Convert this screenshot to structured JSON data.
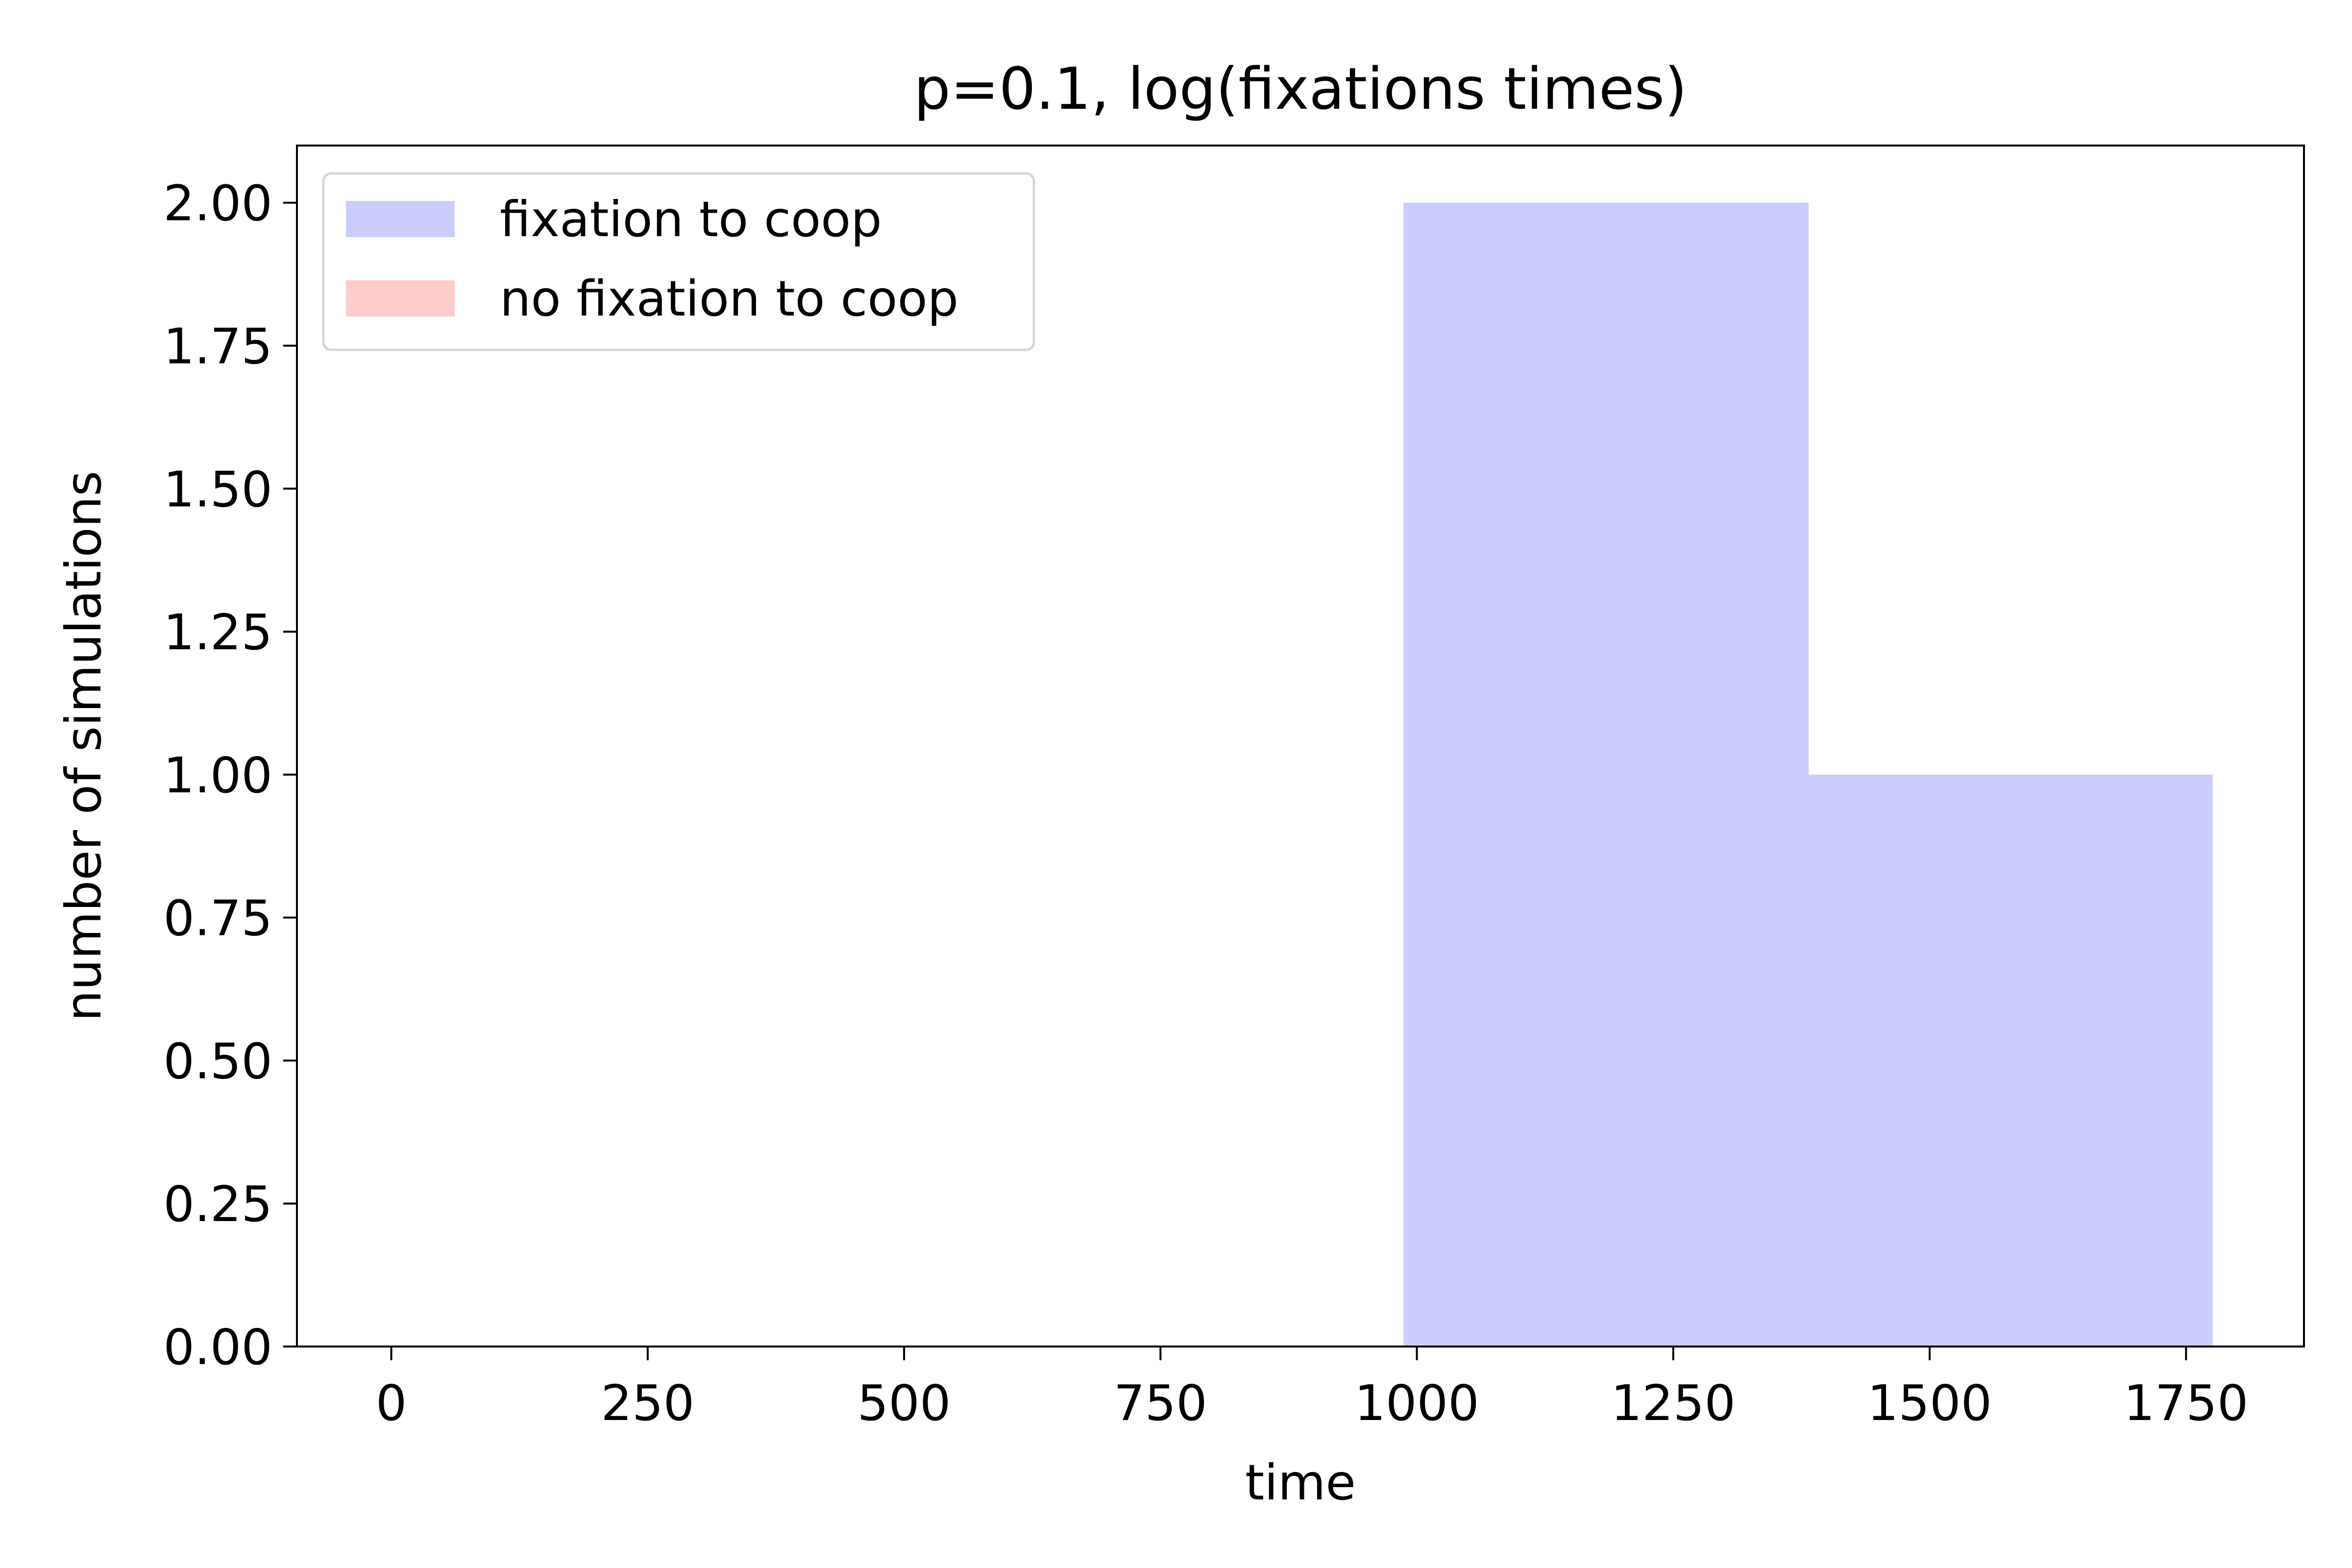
{
  "chart_data": {
    "type": "bar",
    "title": "p=0.1, log(fixations times)",
    "xlabel": "time",
    "ylabel": "number of simulations",
    "xlim": [
      -92,
      1865
    ],
    "ylim": [
      0,
      2.1
    ],
    "xticks": [
      0,
      250,
      500,
      750,
      1000,
      1250,
      1500,
      1750
    ],
    "xtick_labels": [
      "0",
      "250",
      "500",
      "750",
      "1000",
      "1250",
      "1500",
      "1750"
    ],
    "yticks": [
      0,
      0.25,
      0.5,
      0.75,
      1.0,
      1.25,
      1.5,
      1.75,
      2.0
    ],
    "ytick_labels": [
      "0.00",
      "0.25",
      "0.50",
      "0.75",
      "1.00",
      "1.25",
      "1.50",
      "1.75",
      "2.00"
    ],
    "grid": false,
    "legend_position": "top-left",
    "series": [
      {
        "name": "fixation to coop",
        "color": "#ccccfc",
        "bins": [
          {
            "x0": 987,
            "x1": 1382,
            "count": 2
          },
          {
            "x0": 1382,
            "x1": 1776,
            "count": 1
          }
        ]
      },
      {
        "name": "no fixation to coop",
        "color": "#fdcccc",
        "bins": []
      }
    ]
  }
}
